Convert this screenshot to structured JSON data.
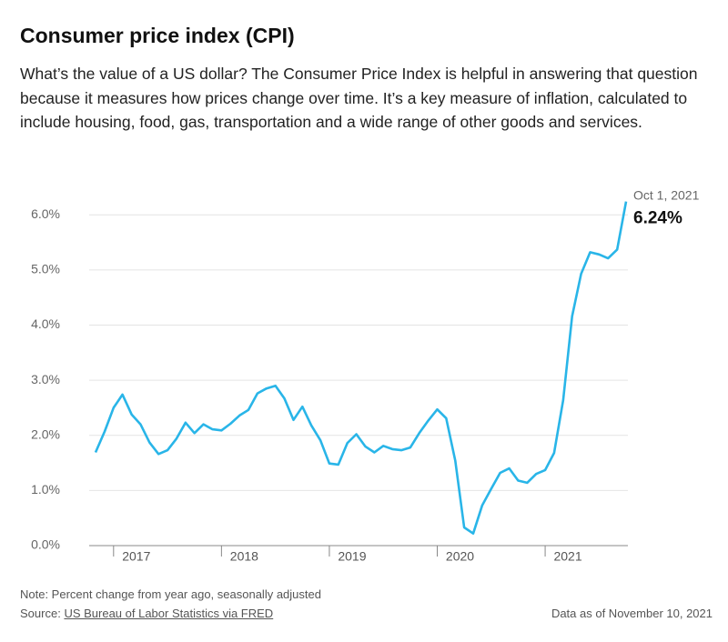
{
  "chart_data": {
    "type": "line",
    "title": "Consumer price index (CPI)",
    "subtitle": "What’s the value of a US dollar? The Consumer Price Index is helpful in answering that question because it measures how prices change over time. It’s a key measure of inflation, calculated to include housing, food, gas, transportation and a wide range of other goods and services.",
    "x": [
      2016.833,
      2016.917,
      2017.0,
      2017.083,
      2017.167,
      2017.25,
      2017.333,
      2017.417,
      2017.5,
      2017.583,
      2017.667,
      2017.75,
      2017.833,
      2017.917,
      2018.0,
      2018.083,
      2018.167,
      2018.25,
      2018.333,
      2018.417,
      2018.5,
      2018.583,
      2018.667,
      2018.75,
      2018.833,
      2018.917,
      2019.0,
      2019.083,
      2019.167,
      2019.25,
      2019.333,
      2019.417,
      2019.5,
      2019.583,
      2019.667,
      2019.75,
      2019.833,
      2019.917,
      2020.0,
      2020.083,
      2020.167,
      2020.25,
      2020.333,
      2020.417,
      2020.5,
      2020.583,
      2020.667,
      2020.75,
      2020.833,
      2020.917,
      2021.0,
      2021.083,
      2021.167,
      2021.25,
      2021.333,
      2021.417,
      2021.5,
      2021.583,
      2021.667,
      2021.75
    ],
    "values": [
      1.69,
      2.07,
      2.5,
      2.74,
      2.38,
      2.2,
      1.87,
      1.66,
      1.73,
      1.94,
      2.23,
      2.04,
      2.2,
      2.11,
      2.09,
      2.21,
      2.36,
      2.46,
      2.76,
      2.85,
      2.9,
      2.67,
      2.28,
      2.52,
      2.18,
      1.91,
      1.49,
      1.47,
      1.86,
      2.02,
      1.8,
      1.69,
      1.81,
      1.75,
      1.73,
      1.78,
      2.04,
      2.27,
      2.47,
      2.31,
      1.54,
      0.33,
      0.22,
      0.73,
      1.03,
      1.32,
      1.4,
      1.18,
      1.14,
      1.3,
      1.37,
      1.68,
      2.64,
      4.16,
      4.93,
      5.32,
      5.28,
      5.21,
      5.37,
      6.24
    ],
    "color": "#29b5e8",
    "xlim": [
      2016.833,
      2021.75
    ],
    "xticks": [
      2017,
      2018,
      2019,
      2020,
      2021
    ],
    "ylim": [
      0,
      6.3
    ],
    "yticks": [
      {
        "value": 0,
        "label": "0.0%"
      },
      {
        "value": 1,
        "label": "1.0%"
      },
      {
        "value": 2,
        "label": "2.0%"
      },
      {
        "value": 3,
        "label": "3.0%"
      },
      {
        "value": 4,
        "label": "4.0%"
      },
      {
        "value": 5,
        "label": "5.0%"
      },
      {
        "value": 6,
        "label": "6.0%"
      }
    ],
    "grid": true,
    "annotation": {
      "label": "Oct 1, 2021",
      "value_label": "6.24%"
    },
    "note": "Note: Percent change from year ago, seasonally adjusted",
    "source_prefix": "Source:",
    "source": "US Bureau of Labor Statistics via FRED",
    "data_date": "Data as of November 10, 2021"
  }
}
